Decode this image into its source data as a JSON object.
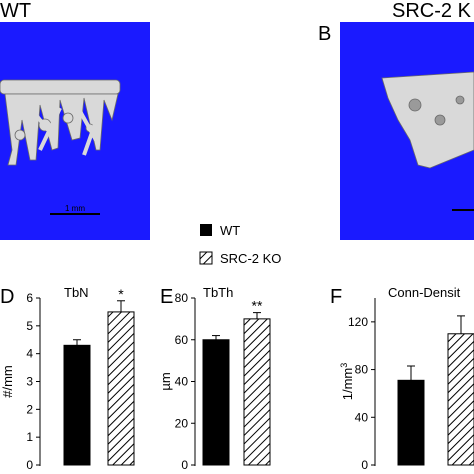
{
  "panels": {
    "a": {
      "label": "WT",
      "scale_bar": "1 mm"
    },
    "b": {
      "letter": "B",
      "label": "SRC-2 K"
    }
  },
  "legend": {
    "entries": [
      {
        "name": "WT",
        "fill": "#000000"
      },
      {
        "name": "SRC-2 KO",
        "fill": "hatched"
      }
    ]
  },
  "colors": {
    "micro_ct_background": "#1a1aff",
    "bone": "#d9d9d9",
    "wt_bar": "#000000"
  },
  "chart_data": [
    {
      "type": "bar",
      "panel_letter": "D",
      "title": "TbN",
      "ylabel": "#/mm",
      "ylim": [
        0,
        6
      ],
      "yticks": [
        "0",
        "1",
        "2",
        "3",
        "4",
        "5",
        "6"
      ],
      "categories": [
        "WT",
        "SRC-2 KO"
      ],
      "values": [
        4.3,
        5.5
      ],
      "errors": [
        0.2,
        0.4
      ],
      "significance": [
        "",
        "*"
      ]
    },
    {
      "type": "bar",
      "panel_letter": "E",
      "title": "TbTh",
      "ylabel": "µm",
      "ylim": [
        0,
        80
      ],
      "yticks": [
        "0",
        "20",
        "40",
        "60",
        "80"
      ],
      "categories": [
        "WT",
        "SRC-2 KO"
      ],
      "values": [
        60,
        70
      ],
      "errors": [
        2,
        3
      ],
      "significance": [
        "",
        "**"
      ]
    },
    {
      "type": "bar",
      "panel_letter": "F",
      "title": "Conn-Densit",
      "ylabel": "1/mm",
      "ylabel_sup": "3",
      "ylim": [
        0,
        140
      ],
      "yticks": [
        "0",
        "40",
        "80",
        "120"
      ],
      "categories": [
        "WT",
        "SRC-2 KO"
      ],
      "values": [
        71,
        110
      ],
      "errors": [
        12,
        15
      ],
      "significance": [
        "",
        ""
      ]
    }
  ]
}
